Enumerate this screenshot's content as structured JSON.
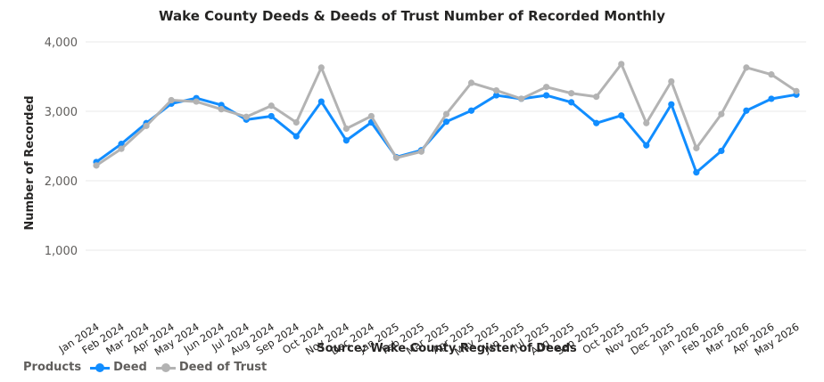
{
  "chart_data": {
    "type": "line",
    "title": "Wake County Deeds & Deeds of Trust Number of Recorded Monthly",
    "xlabel": "Source: Wake County Register of Deeds",
    "ylabel": "Number of Recorded",
    "ylim": [
      0,
      4000
    ],
    "yticks": [
      1000,
      2000,
      3000,
      4000
    ],
    "ytick_labels": [
      "1,000",
      "2,000",
      "3,000",
      "4,000"
    ],
    "grid": true,
    "legend_position": "bottom-left",
    "categories": [
      "Jan 2024",
      "Feb 2024",
      "Mar 2024",
      "Apr 2024",
      "May 2024",
      "Jun 2024",
      "Jul 2024",
      "Aug 2024",
      "Sep 2024",
      "Oct 2024",
      "Nov 2024",
      "Dec 2024",
      "Jan 2025",
      "Feb 2025",
      "Mar 2025",
      "Apr 2025",
      "May 2025",
      "Jun 2025",
      "Jul 2025",
      "Aug 2025",
      "Sep 2025",
      "Oct 2025",
      "Nov 2025",
      "Dec 2025",
      "Jan 2026",
      "Feb 2026",
      "Mar 2026",
      "Apr 2026",
      "May 2026"
    ],
    "series": [
      {
        "name": "Deed",
        "color": "#118dff",
        "values": [
          2270,
          2530,
          2830,
          3110,
          3190,
          3090,
          2880,
          2930,
          2640,
          3140,
          2580,
          2840,
          2340,
          2440,
          2850,
          3010,
          3230,
          3180,
          3230,
          3130,
          2830,
          2940,
          2510,
          3100,
          2120,
          2430,
          3010,
          3180,
          3240
        ]
      },
      {
        "name": "Deed of Trust",
        "color": "#b3b3b3",
        "values": [
          2220,
          2460,
          2790,
          3160,
          3140,
          3030,
          2920,
          3080,
          2840,
          3630,
          2750,
          2930,
          2330,
          2420,
          2960,
          3410,
          3300,
          3180,
          3350,
          3260,
          3210,
          3680,
          2830,
          3430,
          2470,
          2960,
          3630,
          3530,
          3290
        ]
      }
    ]
  },
  "legend": {
    "title": "Products"
  }
}
